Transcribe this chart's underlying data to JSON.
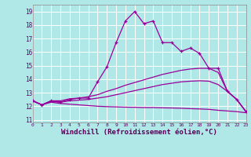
{
  "background_color": "#b0e8e8",
  "grid_color": "#ffffff",
  "line_color": "#990099",
  "xlabel": "Windchill (Refroidissement éolien,°C)",
  "ylabel_ticks": [
    11,
    12,
    13,
    14,
    15,
    16,
    17,
    18,
    19
  ],
  "xlabel_ticks": [
    0,
    1,
    2,
    3,
    4,
    5,
    6,
    7,
    8,
    9,
    10,
    11,
    12,
    13,
    14,
    15,
    16,
    17,
    18,
    19,
    20,
    21,
    22,
    23
  ],
  "xlim": [
    0,
    23
  ],
  "ylim": [
    10.8,
    19.5
  ],
  "series": [
    {
      "x": [
        0,
        1,
        2,
        3,
        4,
        5,
        6,
        7,
        8,
        9,
        10,
        11,
        12,
        13,
        14,
        15,
        16,
        17,
        18,
        19,
        20,
        21,
        22,
        23
      ],
      "y": [
        12.4,
        12.1,
        12.4,
        12.3,
        12.5,
        12.6,
        12.6,
        13.8,
        14.9,
        16.7,
        18.3,
        19.0,
        18.1,
        18.3,
        16.7,
        16.7,
        16.05,
        16.3,
        15.9,
        14.8,
        14.8,
        13.1,
        12.5,
        11.6
      ],
      "marker": true
    },
    {
      "x": [
        0,
        1,
        2,
        3,
        4,
        5,
        6,
        7,
        8,
        9,
        10,
        11,
        12,
        13,
        14,
        15,
        16,
        17,
        18,
        19,
        20,
        21,
        22,
        23
      ],
      "y": [
        12.4,
        12.1,
        12.4,
        12.4,
        12.55,
        12.6,
        12.7,
        12.85,
        13.1,
        13.3,
        13.55,
        13.75,
        13.95,
        14.15,
        14.35,
        14.5,
        14.65,
        14.75,
        14.8,
        14.8,
        14.5,
        13.1,
        12.5,
        11.6
      ],
      "marker": false
    },
    {
      "x": [
        0,
        1,
        2,
        3,
        4,
        5,
        6,
        7,
        8,
        9,
        10,
        11,
        12,
        13,
        14,
        15,
        16,
        17,
        18,
        19,
        20,
        21,
        22,
        23
      ],
      "y": [
        12.4,
        12.1,
        12.35,
        12.3,
        12.4,
        12.45,
        12.5,
        12.6,
        12.7,
        12.85,
        13.0,
        13.15,
        13.3,
        13.45,
        13.6,
        13.7,
        13.8,
        13.85,
        13.88,
        13.85,
        13.6,
        13.1,
        12.5,
        11.6
      ],
      "marker": false
    },
    {
      "x": [
        0,
        1,
        2,
        3,
        4,
        5,
        6,
        7,
        8,
        9,
        10,
        11,
        12,
        13,
        14,
        15,
        16,
        17,
        18,
        19,
        20,
        21,
        22,
        23
      ],
      "y": [
        12.4,
        12.1,
        12.3,
        12.2,
        12.15,
        12.1,
        12.05,
        12.0,
        11.97,
        11.95,
        11.93,
        11.92,
        11.9,
        11.9,
        11.88,
        11.87,
        11.85,
        11.82,
        11.8,
        11.77,
        11.7,
        11.65,
        11.6,
        11.52
      ],
      "marker": false
    }
  ]
}
